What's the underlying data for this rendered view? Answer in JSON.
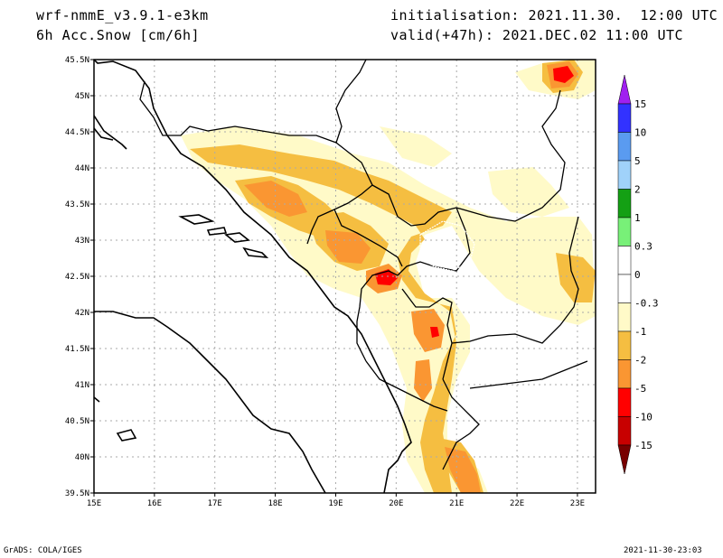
{
  "header": {
    "model": "wrf-nmmE_v3.9.1-e3km",
    "field": "6h Acc.Snow [cm/6h]",
    "init": "initialisation: 2021.11.30.  12:00 UTC",
    "valid": "valid(+47h): 2021.DEC.02 11:00 UTC"
  },
  "footer": {
    "credit": "GrADS: COLA/IGES",
    "timestamp": "2021-11-30-23:03"
  },
  "axes": {
    "lon_labels": [
      "15E",
      "16E",
      "17E",
      "18E",
      "19E",
      "20E",
      "21E",
      "22E",
      "23E"
    ],
    "lat_labels": [
      "45.5N",
      "45N",
      "44.5N",
      "44N",
      "43.5N",
      "43N",
      "42.5N",
      "42N",
      "41.5N",
      "41N",
      "40.5N",
      "40N",
      "39.5N"
    ]
  },
  "colorbar": {
    "labels": [
      "15",
      "10",
      "5",
      "2",
      "1",
      "0.3",
      "0",
      "-0.3",
      "-1",
      "-2",
      "-5",
      "-10",
      "-15"
    ],
    "colors": [
      "#3232ff",
      "#5a9bf0",
      "#a0d2fa",
      "#14a014",
      "#78f078",
      "#ffffff",
      "#ffffff",
      "#fffac8",
      "#f5be41",
      "#fa9632",
      "#ff0000",
      "#c80000",
      "#a00000"
    ],
    "top_arrow": "#a020f0",
    "bottom_arrow": "#780000"
  },
  "map": {
    "lon_range": [
      15,
      23.3
    ],
    "lat_range": [
      39.5,
      45.5
    ],
    "grid": true,
    "snow_colors": {
      "light": "#fffac8",
      "moderate": "#f5be41",
      "heavy": "#fa9632",
      "very_heavy": "#ff0000"
    }
  }
}
